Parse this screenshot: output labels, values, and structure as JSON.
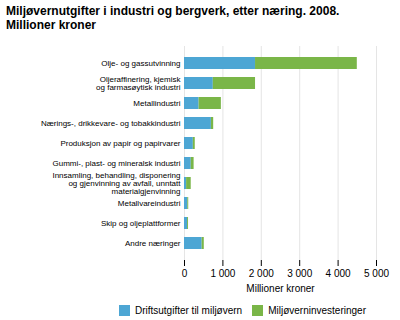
{
  "chart_data": {
    "type": "bar",
    "orientation": "horizontal",
    "stacked": true,
    "title": "Miljøvernutgifter i industri og bergverk, etter næring. 2008.\nMillioner kroner",
    "categories": [
      "Olje- og gassutvinning",
      "Oljeraffinering, kjemisk\nog farmasøytisk industri",
      "Metallindustri",
      "Nærings-, drikkevare- og tobakkindustri",
      "Produksjon av papir og papirvarer",
      "Gummi-, plast- og mineralsk industri",
      "Innsamling, behandling, disponering\nog gjenvinning av avfall, unntatt\nmaterialgjenvinning",
      "Metallvareindustri",
      "Skip og oljeplattformer",
      "Andre næringer"
    ],
    "series": [
      {
        "name": "Driftsutgifter til miljøvern",
        "color": "#4da6d4",
        "values": [
          1850,
          750,
          380,
          700,
          230,
          175,
          55,
          85,
          80,
          460
        ]
      },
      {
        "name": "Miljøverninvesteringer",
        "color": "#7ab648",
        "values": [
          2650,
          1100,
          580,
          60,
          50,
          75,
          120,
          25,
          25,
          55
        ]
      }
    ],
    "xlabel": "Millioner kroner",
    "xlim": [
      0,
      5000
    ],
    "xticks": [
      0,
      {
        "value": 1000,
        "label": "1 000"
      },
      {
        "value": 2000,
        "label": "2 000"
      },
      {
        "value": 3000,
        "label": "3 000"
      },
      {
        "value": 4000,
        "label": "4 000"
      },
      {
        "value": 5000,
        "label": "5 000"
      }
    ],
    "grid": true,
    "legend": "lower right"
  }
}
